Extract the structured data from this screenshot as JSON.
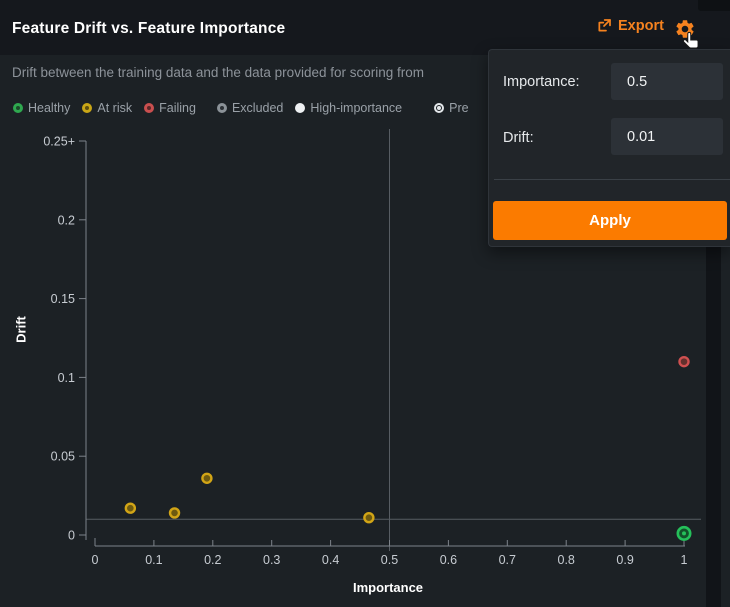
{
  "header": {
    "title": "Feature Drift vs. Feature Importance",
    "export_label": "Export"
  },
  "subtitle": "Drift between the training data and the data provided for scoring from",
  "legend": {
    "items": [
      {
        "label": "Healthy",
        "marker": "ring",
        "color": "#2fa84f",
        "fill": "#1b4a2a",
        "indent": 0
      },
      {
        "label": "At risk",
        "marker": "ring",
        "color": "#c9a616",
        "fill": "#5c4d0f",
        "indent": 0
      },
      {
        "label": "Failing",
        "marker": "ring",
        "color": "#c94f4f",
        "fill": "#5c2727",
        "indent": 0
      },
      {
        "label": "Excluded",
        "marker": "ring",
        "color": "#8b9298",
        "fill": "#2c3136",
        "indent": 9
      },
      {
        "label": "High-importance",
        "marker": "solid",
        "color": "#eef1f3",
        "fill": "#eef1f3",
        "indent": 0
      },
      {
        "label": "Pre",
        "marker": "target",
        "color": "#e4e8eb",
        "fill": "transparent",
        "indent": 20
      }
    ]
  },
  "controls": {
    "importance_label": "Importance:",
    "importance_value": "0.5",
    "drift_label": "Drift:",
    "drift_value": "0.01",
    "apply_label": "Apply"
  },
  "chart_data": {
    "type": "scatter",
    "xlabel": "Importance",
    "ylabel": "Drift",
    "xlim": [
      0,
      1
    ],
    "ylim": [
      0,
      0.25
    ],
    "grid": false,
    "x_ticks": [
      {
        "v": 0,
        "label": "0"
      },
      {
        "v": 0.1,
        "label": "0.1"
      },
      {
        "v": 0.2,
        "label": "0.2"
      },
      {
        "v": 0.3,
        "label": "0.3"
      },
      {
        "v": 0.4,
        "label": "0.4"
      },
      {
        "v": 0.5,
        "label": "0.5"
      },
      {
        "v": 0.6,
        "label": "0.6"
      },
      {
        "v": 0.7,
        "label": "0.7"
      },
      {
        "v": 0.8,
        "label": "0.8"
      },
      {
        "v": 0.9,
        "label": "0.9"
      },
      {
        "v": 1,
        "label": "1"
      }
    ],
    "y_ticks": [
      {
        "v": 0,
        "label": "0"
      },
      {
        "v": 0.05,
        "label": "0.05"
      },
      {
        "v": 0.1,
        "label": "0.1"
      },
      {
        "v": 0.15,
        "label": "0.15"
      },
      {
        "v": 0.2,
        "label": "0.2"
      },
      {
        "v": 0.25,
        "label": "0.25+"
      }
    ],
    "points": [
      {
        "x": 0.06,
        "y": 0.017,
        "status": "at-risk"
      },
      {
        "x": 0.135,
        "y": 0.014,
        "status": "at-risk"
      },
      {
        "x": 0.19,
        "y": 0.036,
        "status": "at-risk"
      },
      {
        "x": 0.465,
        "y": 0.011,
        "status": "at-risk"
      },
      {
        "x": 1,
        "y": 0.11,
        "status": "failing"
      },
      {
        "x": 1,
        "y": 0.001,
        "status": "healthy-prediction"
      }
    ],
    "thresholds": {
      "importance": 0.5,
      "drift": 0.01
    },
    "status_colors": {
      "at-risk": {
        "stroke": "#d2a516",
        "fill": "#6e5a10"
      },
      "failing": {
        "stroke": "#cf5050",
        "fill": "#63302d"
      },
      "healthy-prediction": {
        "stroke": "#25c05a",
        "fill": "#12512a"
      }
    }
  },
  "colors": {
    "accent_orange": "#f5821f",
    "apply_orange": "#fb7b00",
    "axis": "#7d838a",
    "tick_label": "#c7ccd2",
    "threshold_line": "#575d63"
  }
}
